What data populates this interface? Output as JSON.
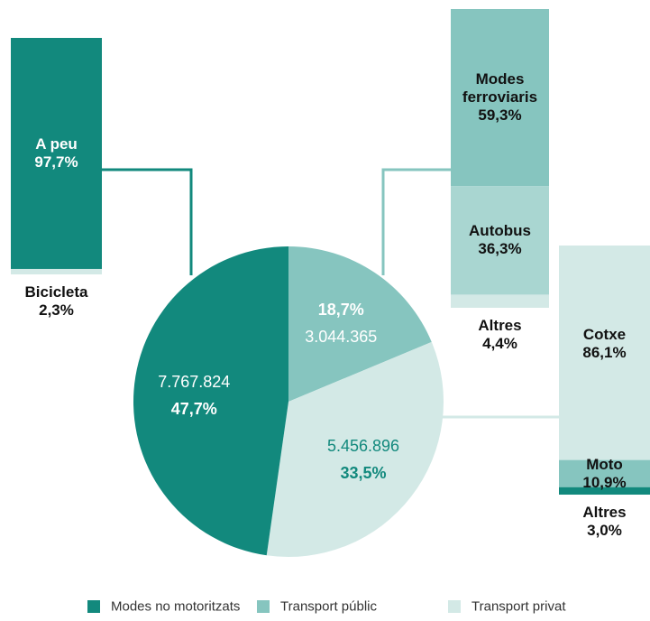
{
  "chart_data": {
    "type": "pie",
    "categories": [
      "Transport públic",
      "Transport privat",
      "Modes no motoritzats"
    ],
    "values": [
      18.7,
      33.5,
      47.7
    ],
    "value_labels": [
      "18,7%",
      "33,5%",
      "47,7%"
    ],
    "count_labels": [
      "3.044.365",
      "5.456.896",
      "7.767.824"
    ],
    "colors": [
      "#86c5bf",
      "#d3e9e6",
      "#12897d"
    ],
    "legend_order": [
      2,
      0,
      1
    ],
    "breakdowns": [
      {
        "names": [
          "Modes ferroviaris",
          "Autobus",
          "Altres"
        ],
        "values": [
          59.3,
          36.3,
          4.4
        ],
        "value_labels": [
          "59,3%",
          "36,3%",
          "4,4%"
        ],
        "colors": [
          "#86c5bf",
          "#a9d6d1",
          "#d3e9e6"
        ]
      },
      {
        "names": [
          "Cotxe",
          "Moto",
          "Altres"
        ],
        "values": [
          86.1,
          10.9,
          3.0
        ],
        "value_labels": [
          "86,1%",
          "10,9%",
          "3,0%"
        ],
        "colors": [
          "#d3e9e6",
          "#86c5bf",
          "#12897d"
        ]
      },
      {
        "names": [
          "A peu",
          "Bicicleta"
        ],
        "values": [
          97.7,
          2.3
        ],
        "value_labels": [
          "97,7%",
          "2,3%"
        ],
        "colors": [
          "#12897d",
          "#d3e9e6"
        ]
      }
    ]
  }
}
